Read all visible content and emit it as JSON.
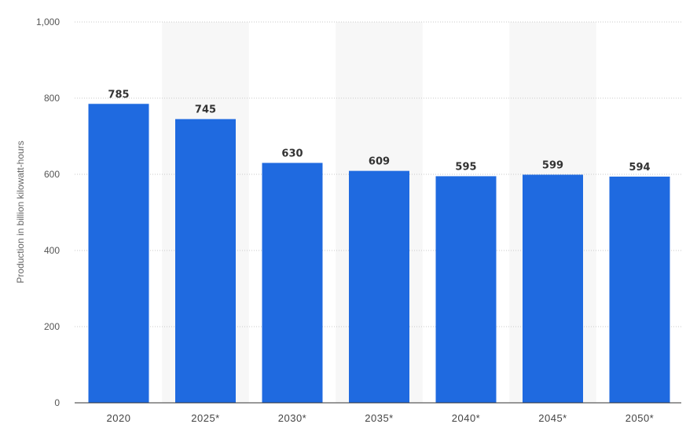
{
  "chart_data": {
    "type": "bar",
    "categories": [
      "2020",
      "2025*",
      "2030*",
      "2035*",
      "2040*",
      "2045*",
      "2050*"
    ],
    "values": [
      785,
      745,
      630,
      609,
      595,
      599,
      594
    ],
    "data_labels": [
      "785",
      "745",
      "630",
      "609",
      "595",
      "599",
      "594"
    ],
    "title": "",
    "xlabel": "",
    "ylabel": "Production in billion kilowatt-hours",
    "ylim": [
      0,
      1000
    ],
    "yticks": [
      0,
      200,
      400,
      600,
      800,
      1000
    ],
    "ytick_labels": [
      "0",
      "200",
      "400",
      "600",
      "800",
      "1,000"
    ],
    "grid": true,
    "legend": "none",
    "colors": {
      "bar": "#1f6ae0",
      "alt_band": "#f7f7f7",
      "grid": "#c8c8c8",
      "axis": "#333333"
    }
  }
}
